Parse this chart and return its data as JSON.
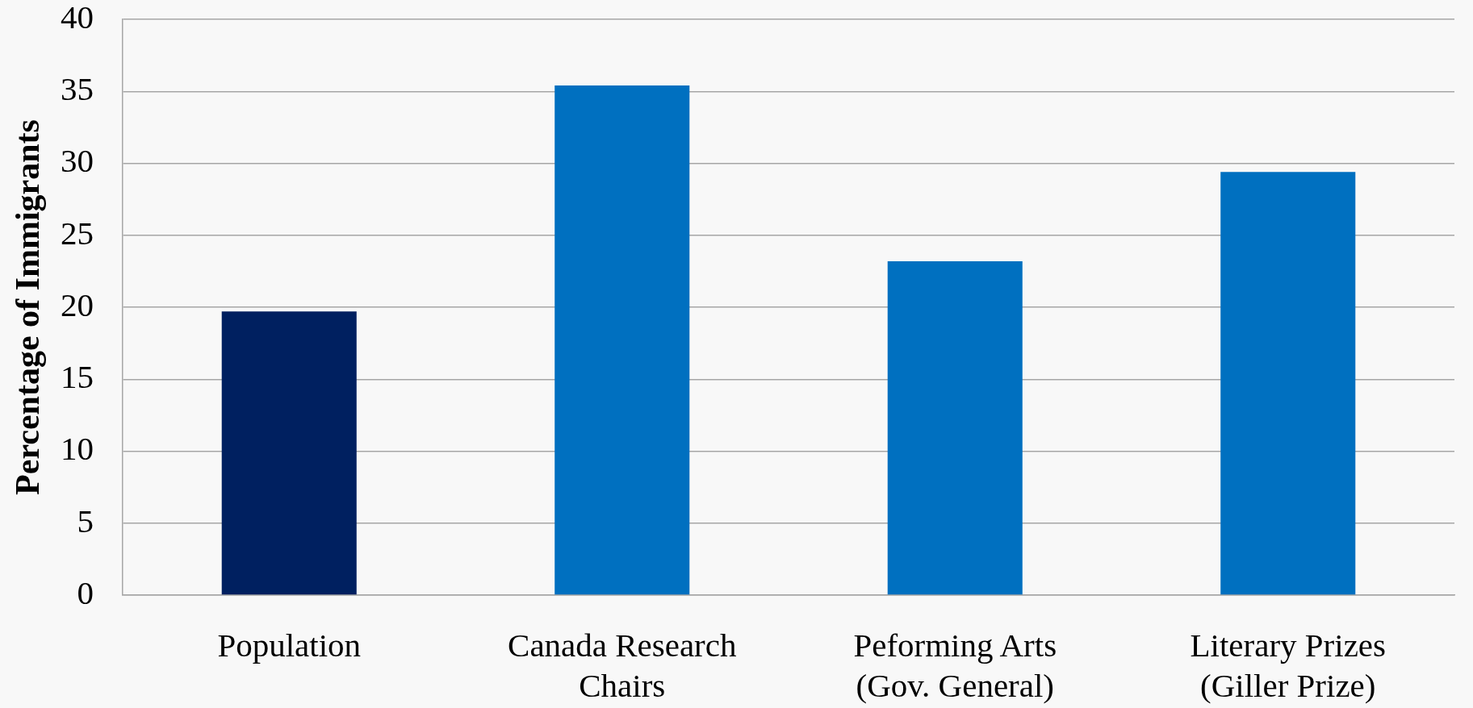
{
  "chart_data": {
    "type": "bar",
    "ylabel": "Percentage of Immigrants",
    "categories": [
      "Population",
      "Canada Research Chairs",
      "Peforming Arts (Gov. General)",
      "Literary Prizes (Giller Prize)"
    ],
    "values": [
      19.7,
      35.4,
      23.2,
      29.4
    ],
    "colors": [
      "#002060",
      "#0070c0",
      "#0070c0",
      "#0070c0"
    ],
    "ylim": [
      0,
      40
    ],
    "yticks": [
      0,
      5,
      10,
      15,
      20,
      25,
      30,
      35,
      40
    ],
    "grid": "y"
  }
}
